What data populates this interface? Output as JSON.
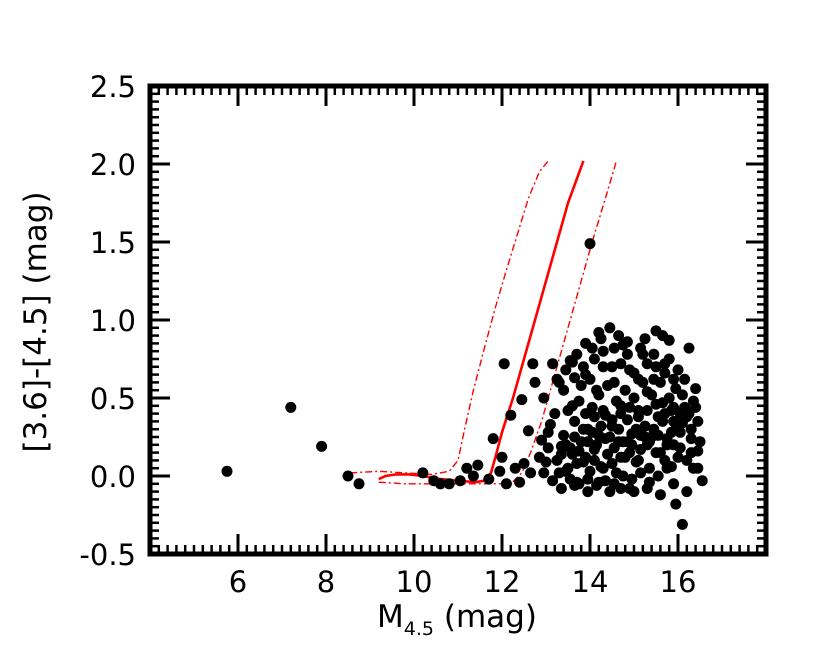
{
  "chart_data": {
    "type": "scatter",
    "xlabel_main": "M",
    "xlabel_sub": "4.5",
    "xlabel_unit": " (mag)",
    "ylabel": "[3.6]-[4.5] (mag)",
    "xlim": [
      4.0,
      18.0
    ],
    "ylim": [
      -0.5,
      2.5
    ],
    "x_ticks": [
      {
        "value": 6,
        "label": "6"
      },
      {
        "value": 8,
        "label": "8"
      },
      {
        "value": 10,
        "label": "10"
      },
      {
        "value": 12,
        "label": "12"
      },
      {
        "value": 14,
        "label": "14"
      },
      {
        "value": 16,
        "label": "16"
      }
    ],
    "y_ticks": [
      {
        "value": -0.5,
        "label": "-0.5"
      },
      {
        "value": 0.0,
        "label": "0.0"
      },
      {
        "value": 0.5,
        "label": "0.5"
      },
      {
        "value": 1.0,
        "label": "1.0"
      },
      {
        "value": 1.5,
        "label": "1.5"
      },
      {
        "value": 2.0,
        "label": "2.0"
      },
      {
        "value": 2.5,
        "label": "2.5"
      }
    ],
    "grid": false,
    "colors": {
      "points": "#000000",
      "model": "#ff0000",
      "axes": "#000000"
    },
    "points": [
      [
        5.75,
        0.03
      ],
      [
        7.2,
        0.44
      ],
      [
        7.9,
        0.19
      ],
      [
        8.5,
        0.0
      ],
      [
        8.75,
        -0.05
      ],
      [
        10.2,
        0.02
      ],
      [
        10.45,
        -0.03
      ],
      [
        10.6,
        -0.05
      ],
      [
        10.8,
        -0.05
      ],
      [
        11.05,
        -0.03
      ],
      [
        11.2,
        0.05
      ],
      [
        11.35,
        0.0
      ],
      [
        11.45,
        0.07
      ],
      [
        11.7,
        -0.02
      ],
      [
        11.8,
        0.24
      ],
      [
        11.95,
        0.03
      ],
      [
        12.0,
        0.12
      ],
      [
        12.05,
        0.72
      ],
      [
        12.1,
        -0.05
      ],
      [
        12.2,
        0.39
      ],
      [
        12.3,
        0.05
      ],
      [
        12.4,
        -0.04
      ],
      [
        12.45,
        0.49
      ],
      [
        12.5,
        0.08
      ],
      [
        12.6,
        0.29
      ],
      [
        12.65,
        0.02
      ],
      [
        12.7,
        0.72
      ],
      [
        12.75,
        0.6
      ],
      [
        12.85,
        0.12
      ],
      [
        12.9,
        0.23
      ],
      [
        12.95,
        0.02
      ],
      [
        13.0,
        0.09
      ],
      [
        13.05,
        0.18
      ],
      [
        13.1,
        0.33
      ],
      [
        13.15,
        0.72
      ],
      [
        13.15,
        -0.03
      ],
      [
        13.25,
        0.1
      ],
      [
        13.3,
        0.6
      ],
      [
        13.35,
        0.19
      ],
      [
        13.4,
        0.26
      ],
      [
        13.45,
        0.03
      ],
      [
        13.5,
        0.42
      ],
      [
        13.55,
        0.74
      ],
      [
        13.6,
        0.14
      ],
      [
        13.65,
        0.35
      ],
      [
        13.7,
        -0.04
      ],
      [
        13.75,
        0.48
      ],
      [
        13.8,
        0.22
      ],
      [
        13.85,
        0.09
      ],
      [
        13.9,
        0.65
      ],
      [
        13.95,
        0.3
      ],
      [
        14.0,
        0.03
      ],
      [
        14.0,
        1.49
      ],
      [
        14.05,
        0.44
      ],
      [
        14.1,
        0.17
      ],
      [
        14.15,
        0.55
      ],
      [
        14.2,
        0.26
      ],
      [
        14.25,
        0.06
      ],
      [
        14.3,
        0.7
      ],
      [
        14.35,
        0.39
      ],
      [
        14.4,
        0.14
      ],
      [
        14.45,
        0.95
      ],
      [
        14.5,
        0.32
      ],
      [
        14.55,
        0.6
      ],
      [
        14.6,
        0.02
      ],
      [
        14.65,
        0.22
      ],
      [
        14.7,
        0.45
      ],
      [
        14.75,
        0.84
      ],
      [
        14.8,
        0.12
      ],
      [
        14.85,
        0.36
      ],
      [
        14.9,
        -0.08
      ],
      [
        14.95,
        0.27
      ],
      [
        15.0,
        0.66
      ],
      [
        15.05,
        0.09
      ],
      [
        15.1,
        0.42
      ],
      [
        15.15,
        0.17
      ],
      [
        15.2,
        0.78
      ],
      [
        15.25,
        0.32
      ],
      [
        15.3,
        0.54
      ],
      [
        15.35,
        0.05
      ],
      [
        15.4,
        0.25
      ],
      [
        15.45,
        0.62
      ],
      [
        15.5,
        0.93
      ],
      [
        15.55,
        0.38
      ],
      [
        15.6,
        0.15
      ],
      [
        15.65,
        0.47
      ],
      [
        15.7,
        0.72
      ],
      [
        15.75,
        0.2
      ],
      [
        15.8,
        0.87
      ],
      [
        15.85,
        0.06
      ],
      [
        15.9,
        0.35
      ],
      [
        15.95,
        0.56
      ],
      [
        16.0,
        0.12
      ],
      [
        16.05,
        0.28
      ],
      [
        16.1,
        -0.31
      ],
      [
        16.15,
        0.44
      ],
      [
        16.2,
        0.1
      ],
      [
        16.25,
        0.82
      ],
      [
        16.3,
        0.24
      ],
      [
        16.35,
        0.05
      ],
      [
        16.4,
        0.56
      ],
      [
        16.45,
        0.16
      ],
      [
        16.55,
        -0.03
      ],
      [
        13.2,
        0.4
      ],
      [
        13.4,
        0.55
      ],
      [
        13.6,
        0.45
      ],
      [
        13.8,
        0.58
      ],
      [
        14.0,
        0.62
      ],
      [
        14.2,
        0.52
      ],
      [
        14.4,
        0.58
      ],
      [
        14.6,
        0.48
      ],
      [
        14.8,
        0.55
      ],
      [
        15.0,
        0.5
      ],
      [
        15.2,
        0.6
      ],
      [
        15.4,
        0.52
      ],
      [
        15.6,
        0.6
      ],
      [
        15.8,
        0.5
      ],
      [
        13.3,
        0.02
      ],
      [
        13.5,
        0.05
      ],
      [
        13.7,
        0.08
      ],
      [
        13.9,
        0.12
      ],
      [
        14.1,
        0.1
      ],
      [
        14.3,
        0.05
      ],
      [
        14.5,
        0.08
      ],
      [
        14.7,
        0.12
      ],
      [
        14.9,
        0.15
      ],
      [
        15.1,
        0.1
      ],
      [
        15.3,
        0.2
      ],
      [
        15.5,
        0.15
      ],
      [
        15.7,
        0.1
      ],
      [
        15.9,
        0.2
      ],
      [
        13.45,
        0.2
      ],
      [
        13.65,
        0.25
      ],
      [
        13.85,
        0.3
      ],
      [
        14.05,
        0.28
      ],
      [
        14.25,
        0.32
      ],
      [
        14.45,
        0.25
      ],
      [
        14.65,
        0.3
      ],
      [
        14.85,
        0.22
      ],
      [
        15.05,
        0.3
      ],
      [
        15.25,
        0.25
      ],
      [
        15.45,
        0.3
      ],
      [
        15.65,
        0.35
      ],
      [
        15.85,
        0.28
      ],
      [
        16.05,
        0.4
      ],
      [
        13.55,
        -0.02
      ],
      [
        13.75,
        -0.05
      ],
      [
        13.95,
        -0.02
      ],
      [
        14.15,
        -0.06
      ],
      [
        14.35,
        -0.03
      ],
      [
        14.55,
        -0.05
      ],
      [
        14.75,
        0.0
      ],
      [
        14.95,
        -0.02
      ],
      [
        15.15,
        0.02
      ],
      [
        15.35,
        -0.04
      ],
      [
        15.55,
        0.0
      ],
      [
        15.75,
        0.05
      ],
      [
        13.35,
        0.14
      ],
      [
        13.55,
        0.18
      ],
      [
        13.75,
        0.16
      ],
      [
        13.95,
        0.22
      ],
      [
        14.15,
        0.2
      ],
      [
        14.35,
        0.24
      ],
      [
        14.55,
        0.18
      ],
      [
        14.75,
        0.22
      ],
      [
        14.95,
        0.2
      ],
      [
        15.15,
        0.26
      ],
      [
        15.35,
        0.22
      ],
      [
        15.55,
        0.26
      ],
      [
        15.75,
        0.24
      ],
      [
        15.95,
        0.3
      ],
      [
        14.1,
        0.75
      ],
      [
        14.3,
        0.8
      ],
      [
        14.5,
        0.7
      ],
      [
        14.7,
        0.72
      ],
      [
        14.9,
        0.68
      ],
      [
        15.1,
        0.62
      ],
      [
        15.3,
        0.72
      ],
      [
        15.5,
        0.7
      ],
      [
        15.7,
        0.66
      ],
      [
        15.9,
        0.62
      ],
      [
        16.1,
        0.52
      ],
      [
        13.7,
        0.78
      ],
      [
        13.9,
        0.4
      ],
      [
        14.1,
        0.38
      ],
      [
        14.3,
        0.42
      ],
      [
        14.5,
        0.36
      ],
      [
        14.7,
        0.4
      ],
      [
        14.9,
        0.44
      ],
      [
        15.1,
        0.38
      ],
      [
        15.3,
        0.42
      ],
      [
        15.5,
        0.46
      ],
      [
        15.7,
        0.4
      ],
      [
        15.9,
        0.44
      ],
      [
        16.1,
        0.34
      ],
      [
        16.2,
        0.38
      ],
      [
        16.3,
        0.3
      ],
      [
        16.4,
        0.44
      ],
      [
        12.95,
        0.5
      ],
      [
        13.05,
        0.28
      ],
      [
        13.25,
        0.62
      ],
      [
        13.45,
        0.68
      ],
      [
        13.65,
        0.63
      ],
      [
        13.85,
        0.7
      ],
      [
        14.05,
        0.82
      ],
      [
        14.25,
        0.88
      ],
      [
        14.65,
        0.9
      ],
      [
        14.85,
        0.86
      ],
      [
        15.25,
        0.88
      ],
      [
        15.65,
        0.9
      ],
      [
        16.0,
        0.68
      ],
      [
        16.15,
        0.62
      ],
      [
        16.3,
        0.15
      ],
      [
        16.45,
        0.35
      ],
      [
        16.5,
        0.22
      ],
      [
        16.2,
        -0.1
      ],
      [
        15.9,
        -0.05
      ],
      [
        15.6,
        -0.12
      ],
      [
        15.3,
        -0.08
      ],
      [
        15.0,
        -0.1
      ],
      [
        14.7,
        -0.08
      ],
      [
        14.45,
        -0.1
      ],
      [
        14.2,
        -0.04
      ],
      [
        13.95,
        -0.1
      ],
      [
        13.65,
        -0.06
      ],
      [
        13.35,
        -0.08
      ],
      [
        16.35,
        0.48
      ],
      [
        16.25,
        0.4
      ],
      [
        16.45,
        0.05
      ],
      [
        15.8,
        0.75
      ],
      [
        15.45,
        0.78
      ],
      [
        15.15,
        0.82
      ],
      [
        14.85,
        0.78
      ],
      [
        14.55,
        0.82
      ],
      [
        14.2,
        0.92
      ],
      [
        13.9,
        0.85
      ],
      [
        13.6,
        0.73
      ],
      [
        16.05,
        0.18
      ],
      [
        15.95,
        -0.18
      ],
      [
        15.85,
        0.42
      ]
    ],
    "model_line": [
      [
        9.2,
        -0.02
      ],
      [
        9.35,
        0.0
      ],
      [
        9.6,
        0.01
      ],
      [
        9.9,
        0.01
      ],
      [
        10.2,
        0.0
      ],
      [
        10.6,
        -0.02
      ],
      [
        11.0,
        -0.03
      ],
      [
        11.4,
        -0.04
      ],
      [
        11.6,
        -0.03
      ],
      [
        11.75,
        0.02
      ],
      [
        11.85,
        0.12
      ],
      [
        12.0,
        0.28
      ],
      [
        12.25,
        0.5
      ],
      [
        12.5,
        0.75
      ],
      [
        12.75,
        1.0
      ],
      [
        13.0,
        1.25
      ],
      [
        13.25,
        1.5
      ],
      [
        13.5,
        1.75
      ],
      [
        13.85,
        2.02
      ]
    ],
    "model_upper": [
      [
        8.55,
        0.02
      ],
      [
        9.2,
        0.03
      ],
      [
        9.8,
        0.02
      ],
      [
        10.4,
        0.01
      ],
      [
        10.8,
        0.03
      ],
      [
        11.0,
        0.1
      ],
      [
        11.15,
        0.3
      ],
      [
        11.35,
        0.55
      ],
      [
        11.6,
        0.82
      ],
      [
        11.85,
        1.08
      ],
      [
        12.1,
        1.32
      ],
      [
        12.35,
        1.55
      ],
      [
        12.6,
        1.78
      ],
      [
        12.85,
        1.95
      ],
      [
        13.05,
        2.02
      ]
    ],
    "model_lower": [
      [
        9.2,
        -0.04
      ],
      [
        9.8,
        -0.05
      ],
      [
        10.4,
        -0.05
      ],
      [
        11.0,
        -0.05
      ],
      [
        11.6,
        -0.05
      ],
      [
        12.2,
        -0.05
      ],
      [
        12.45,
        0.02
      ],
      [
        12.65,
        0.15
      ],
      [
        12.9,
        0.35
      ],
      [
        13.15,
        0.6
      ],
      [
        13.45,
        0.9
      ],
      [
        13.75,
        1.2
      ],
      [
        14.05,
        1.5
      ],
      [
        14.35,
        1.78
      ],
      [
        14.6,
        2.02
      ]
    ]
  }
}
